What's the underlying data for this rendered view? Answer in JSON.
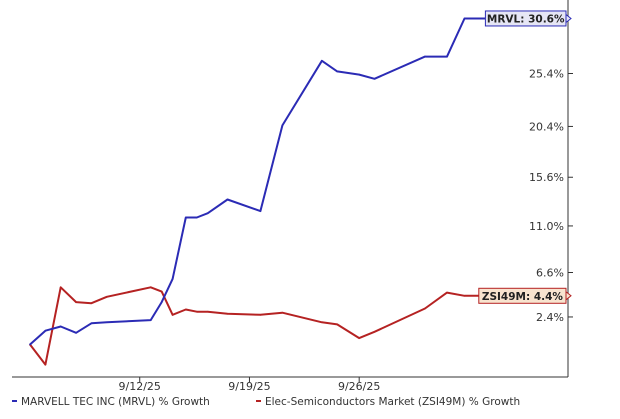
{
  "chart_data": {
    "type": "line",
    "title": "",
    "xlabel": "",
    "ylabel": "",
    "ylim": [
      -2.8,
      31.4
    ],
    "y_ticks": [
      "2.4%",
      "6.6%",
      "11.0%",
      "15.6%",
      "20.4%",
      "25.4%"
    ],
    "y_tick_values": [
      2.4,
      6.6,
      11.0,
      15.6,
      20.4,
      25.4
    ],
    "x_ticks": [
      "9/12/25",
      "9/19/25",
      "9/26/25"
    ],
    "x_tick_values": [
      5,
      10,
      15
    ],
    "x": [
      0,
      0.7,
      1.4,
      2.1,
      2.8,
      3.5,
      5.5,
      6,
      6.5,
      7.1,
      7.6,
      8.1,
      9.0,
      10.5,
      11.5,
      13.3,
      14.0,
      15.0,
      15.7,
      18.0,
      19.0,
      19.8,
      21.0,
      22.1
    ],
    "series": [
      {
        "name": "MARVELL TEC INC (MRVL) % Growth",
        "color": "#2b2bb5",
        "values": [
          -0.2,
          1.1,
          1.5,
          0.9,
          1.8,
          1.9,
          2.1,
          3.8,
          6.0,
          11.8,
          11.8,
          12.2,
          13.5,
          12.4,
          20.5,
          26.6,
          25.6,
          25.3,
          24.9,
          27.0,
          27.0,
          30.6,
          30.6,
          30.6
        ]
      },
      {
        "name": "Elec-Semiconductors Market (ZSI49M) % Growth",
        "color": "#b52222",
        "values": [
          -0.2,
          -2.1,
          5.2,
          3.8,
          3.7,
          4.3,
          5.2,
          4.8,
          2.6,
          3.1,
          2.9,
          2.9,
          2.7,
          2.6,
          2.8,
          1.9,
          1.7,
          0.4,
          1.0,
          3.2,
          4.7,
          4.4,
          4.4,
          4.4
        ]
      }
    ],
    "callouts": [
      {
        "label": "MRVL: 30.6%",
        "value": 30.6,
        "color": "#2b2bb5",
        "fill": "#e6e6f5"
      },
      {
        "label": "ZSI49M: 4.4%",
        "value": 4.4,
        "color": "#b52222",
        "fill": "#f8e4cf"
      }
    ],
    "legend": [
      {
        "label": "MARVELL TEC INC (MRVL) % Growth",
        "color": "#2b2bb5"
      },
      {
        "label": "Elec-Semiconductors Market (ZSI49M) % Growth",
        "color": "#b52222"
      }
    ],
    "legend_position": "bottom",
    "grid": false
  }
}
